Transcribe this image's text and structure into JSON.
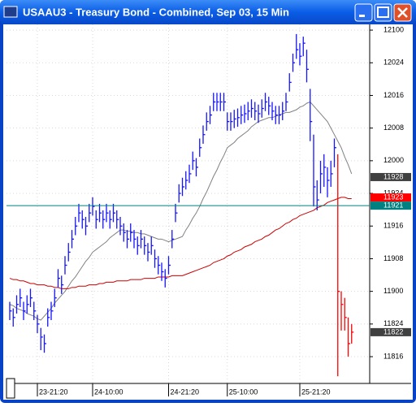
{
  "chart_data": {
    "type": "ohlc",
    "title": "USAAU3 - Treasury Bond - Combined, Sep 03, 15 Min",
    "categories": [
      null,
      null,
      null,
      null,
      null,
      null,
      null,
      null,
      "23-21:20",
      null,
      null,
      null,
      null,
      null,
      null,
      null,
      null,
      null,
      null,
      null,
      null,
      null,
      null,
      null,
      "24-10:00",
      null,
      null,
      null,
      null,
      null,
      null,
      null,
      null,
      null,
      null,
      null,
      null,
      null,
      null,
      null,
      null,
      null,
      null,
      null,
      null,
      null,
      "24-21:20",
      null,
      null,
      null,
      null,
      null,
      null,
      null,
      null,
      null,
      null,
      null,
      null,
      null,
      null,
      null,
      null,
      "25-10:00",
      null,
      null,
      null,
      null,
      null,
      null,
      null,
      null,
      null,
      null,
      null,
      null,
      null,
      null,
      null,
      null,
      null,
      null,
      null,
      null,
      "25-21:20",
      null,
      null,
      null,
      null,
      null,
      null,
      null,
      null,
      null,
      null,
      null,
      null,
      null,
      null,
      null
    ],
    "series": [
      {
        "color": "#1414ff",
        "close": [
          118.85,
          118.8,
          118.9,
          118.95,
          118.85,
          118.9,
          118.95,
          118.85,
          118.75,
          118.65,
          118.6,
          118.8,
          118.85,
          118.95,
          119.1,
          119.05,
          119.2,
          119.3,
          119.4,
          119.5,
          119.6,
          119.55,
          119.5,
          119.6,
          119.65,
          119.55,
          119.6,
          119.55,
          119.6,
          119.55,
          119.6,
          119.55,
          119.5,
          119.45,
          119.4,
          119.45,
          119.4,
          119.35,
          119.4,
          119.35,
          119.3,
          119.35,
          119.25,
          119.2,
          119.15,
          119.1,
          119.2,
          119.4,
          119.6,
          119.75,
          119.8,
          119.85,
          119.9,
          120.0,
          119.95,
          120.1,
          120.2,
          120.3,
          120.35,
          120.45,
          120.45,
          120.45,
          120.45,
          120.3,
          120.3,
          120.32,
          120.33,
          120.35,
          120.36,
          120.38,
          120.4,
          120.38,
          120.36,
          120.4,
          120.45,
          120.42,
          120.38,
          120.35,
          120.35,
          120.38,
          120.45,
          120.6,
          120.75,
          120.85,
          120.8,
          120.9,
          120.7,
          120.3,
          119.8,
          119.7,
          119.9,
          119.95,
          119.85,
          119.9,
          120.1,
          null,
          null,
          null,
          null,
          null
        ],
        "high": [
          118.92,
          118.87,
          118.97,
          119.02,
          118.92,
          118.97,
          119.02,
          118.92,
          118.82,
          118.72,
          118.67,
          118.87,
          118.92,
          119.02,
          119.17,
          119.12,
          119.27,
          119.37,
          119.47,
          119.57,
          119.67,
          119.62,
          119.57,
          119.67,
          119.72,
          119.62,
          119.67,
          119.62,
          119.67,
          119.62,
          119.67,
          119.62,
          119.57,
          119.52,
          119.47,
          119.52,
          119.47,
          119.42,
          119.47,
          119.42,
          119.37,
          119.42,
          119.32,
          119.27,
          119.22,
          119.17,
          119.27,
          119.47,
          119.67,
          119.82,
          119.87,
          119.92,
          119.97,
          120.07,
          120.02,
          120.17,
          120.27,
          120.37,
          120.42,
          120.52,
          120.52,
          120.52,
          120.52,
          120.37,
          120.37,
          120.39,
          120.4,
          120.42,
          120.43,
          120.45,
          120.47,
          120.45,
          120.43,
          120.47,
          120.52,
          120.49,
          120.45,
          120.42,
          120.42,
          120.45,
          120.52,
          120.67,
          120.82,
          120.97,
          120.9,
          120.95,
          120.85,
          120.55,
          120.2,
          119.85,
          120.0,
          120.05,
          119.95,
          120.0,
          120.17,
          null,
          null,
          null,
          null,
          null
        ],
        "low": [
          118.78,
          118.73,
          118.83,
          118.88,
          118.78,
          118.83,
          118.88,
          118.78,
          118.68,
          118.55,
          118.53,
          118.73,
          118.78,
          118.88,
          119.03,
          118.98,
          119.13,
          119.23,
          119.33,
          119.43,
          119.53,
          119.48,
          119.43,
          119.53,
          119.58,
          119.48,
          119.53,
          119.48,
          119.53,
          119.48,
          119.53,
          119.48,
          119.43,
          119.38,
          119.33,
          119.38,
          119.33,
          119.28,
          119.33,
          119.28,
          119.23,
          119.28,
          119.18,
          119.13,
          119.08,
          119.03,
          119.13,
          119.33,
          119.53,
          119.68,
          119.73,
          119.78,
          119.83,
          119.93,
          119.88,
          120.03,
          120.13,
          120.23,
          120.28,
          120.38,
          120.38,
          120.38,
          120.38,
          120.23,
          120.23,
          120.25,
          120.26,
          120.28,
          120.29,
          120.31,
          120.33,
          120.31,
          120.29,
          120.33,
          120.38,
          120.35,
          120.31,
          120.28,
          120.28,
          120.31,
          120.38,
          120.53,
          120.68,
          120.78,
          120.73,
          120.8,
          120.6,
          120.15,
          119.65,
          119.62,
          119.75,
          119.8,
          119.72,
          119.8,
          119.95,
          null,
          null,
          null,
          null,
          null
        ]
      },
      {
        "color": "#ff0000",
        "close": [
          null,
          null,
          null,
          null,
          null,
          null,
          null,
          null,
          null,
          null,
          null,
          null,
          null,
          null,
          null,
          null,
          null,
          null,
          null,
          null,
          null,
          null,
          null,
          null,
          null,
          null,
          null,
          null,
          null,
          null,
          null,
          null,
          null,
          null,
          null,
          null,
          null,
          null,
          null,
          null,
          null,
          null,
          null,
          null,
          null,
          null,
          null,
          null,
          null,
          null,
          null,
          null,
          null,
          null,
          null,
          null,
          null,
          null,
          null,
          null,
          null,
          null,
          null,
          null,
          null,
          null,
          null,
          null,
          null,
          null,
          null,
          null,
          null,
          null,
          null,
          null,
          null,
          null,
          null,
          null,
          null,
          null,
          null,
          null,
          null,
          null,
          null,
          null,
          null,
          null,
          null,
          null,
          null,
          null,
          null,
          119.0,
          118.9,
          118.8,
          118.6,
          118.6875
        ],
        "high": [
          null,
          null,
          null,
          null,
          null,
          null,
          null,
          null,
          null,
          null,
          null,
          null,
          null,
          null,
          null,
          null,
          null,
          null,
          null,
          null,
          null,
          null,
          null,
          null,
          null,
          null,
          null,
          null,
          null,
          null,
          null,
          null,
          null,
          null,
          null,
          null,
          null,
          null,
          null,
          null,
          null,
          null,
          null,
          null,
          null,
          null,
          null,
          null,
          null,
          null,
          null,
          null,
          null,
          null,
          null,
          null,
          null,
          null,
          null,
          null,
          null,
          null,
          null,
          null,
          null,
          null,
          null,
          null,
          null,
          null,
          null,
          null,
          null,
          null,
          null,
          null,
          null,
          null,
          null,
          null,
          null,
          null,
          null,
          null,
          null,
          null,
          null,
          null,
          null,
          null,
          null,
          null,
          null,
          null,
          null,
          120.05,
          119.0,
          118.95,
          118.8,
          118.75
        ],
        "low": [
          null,
          null,
          null,
          null,
          null,
          null,
          null,
          null,
          null,
          null,
          null,
          null,
          null,
          null,
          null,
          null,
          null,
          null,
          null,
          null,
          null,
          null,
          null,
          null,
          null,
          null,
          null,
          null,
          null,
          null,
          null,
          null,
          null,
          null,
          null,
          null,
          null,
          null,
          null,
          null,
          null,
          null,
          null,
          null,
          null,
          null,
          null,
          null,
          null,
          null,
          null,
          null,
          null,
          null,
          null,
          null,
          null,
          null,
          null,
          null,
          null,
          null,
          null,
          null,
          null,
          null,
          null,
          null,
          null,
          null,
          null,
          null,
          null,
          null,
          null,
          null,
          null,
          null,
          null,
          null,
          null,
          null,
          null,
          null,
          null,
          null,
          null,
          null,
          null,
          null,
          null,
          null,
          null,
          null,
          null,
          118.35,
          118.7,
          118.7,
          118.5,
          118.6
        ]
      }
    ],
    "lines": [
      {
        "color": "#808080",
        "values": [
          118.9,
          118.89,
          118.87,
          118.86,
          118.85,
          118.83,
          118.82,
          118.81,
          118.79,
          118.78,
          118.81,
          118.84,
          118.87,
          118.91,
          118.94,
          118.97,
          119.0,
          119.04,
          119.08,
          119.11,
          119.15,
          119.19,
          119.23,
          119.26,
          119.3,
          119.32,
          119.34,
          119.36,
          119.38,
          119.41,
          119.43,
          119.45,
          119.47,
          119.47,
          119.46,
          119.46,
          119.45,
          119.45,
          119.44,
          119.44,
          119.43,
          119.42,
          119.41,
          119.4,
          119.4,
          119.39,
          119.38,
          119.39,
          119.4,
          119.41,
          119.42,
          119.47,
          119.51,
          119.56,
          119.6,
          119.65,
          119.71,
          119.76,
          119.82,
          119.88,
          119.93,
          119.99,
          120.04,
          120.1,
          120.12,
          120.14,
          120.17,
          120.19,
          120.21,
          120.23,
          120.26,
          120.28,
          120.3,
          120.31,
          120.32,
          120.33,
          120.33,
          120.34,
          120.35,
          120.36,
          120.37,
          120.37,
          120.38,
          120.39,
          120.41,
          120.42,
          120.44,
          120.45,
          120.42,
          120.39,
          120.36,
          120.33,
          120.3,
          120.25,
          120.2,
          120.15,
          120.1,
          120.03,
          119.97,
          119.9
        ]
      },
      {
        "color": "#cc0000",
        "values": [
          119.1,
          119.09,
          119.09,
          119.08,
          119.08,
          119.07,
          119.06,
          119.06,
          119.05,
          119.05,
          119.05,
          119.04,
          119.04,
          119.03,
          119.03,
          119.02,
          119.02,
          119.02,
          119.03,
          119.03,
          119.04,
          119.04,
          119.04,
          119.05,
          119.05,
          119.05,
          119.06,
          119.06,
          119.07,
          119.07,
          119.07,
          119.08,
          119.08,
          119.08,
          119.08,
          119.09,
          119.09,
          119.09,
          119.09,
          119.1,
          119.1,
          119.1,
          119.1,
          119.11,
          119.11,
          119.11,
          119.11,
          119.12,
          119.12,
          119.12,
          119.12,
          119.13,
          119.14,
          119.15,
          119.16,
          119.17,
          119.18,
          119.19,
          119.2,
          119.22,
          119.23,
          119.24,
          119.25,
          119.27,
          119.28,
          119.3,
          119.31,
          119.32,
          119.34,
          119.35,
          119.36,
          119.38,
          119.39,
          119.4,
          119.42,
          119.43,
          119.45,
          119.47,
          119.48,
          119.5,
          119.52,
          119.53,
          119.55,
          119.56,
          119.58,
          119.59,
          119.6,
          119.61,
          119.62,
          119.64,
          119.65,
          119.66,
          119.68,
          119.69,
          119.7,
          119.71,
          119.72,
          119.72,
          119.71,
          119.71
        ]
      }
    ],
    "markers": [
      {
        "value": 119.875,
        "label": "11928",
        "color": "#404040"
      },
      {
        "value": 119.71875,
        "label": "11923",
        "color": "#ff0000"
      },
      {
        "value": 119.65625,
        "label": "11921",
        "color": "#008080",
        "line": true
      },
      {
        "value": 118.6875,
        "label": "11822",
        "color": "#404040"
      }
    ],
    "ylim": [
      118.295,
      121.044
    ],
    "yticks": [
      {
        "value": 121,
        "label": "12100"
      },
      {
        "value": 120.75,
        "label": "12024"
      },
      {
        "value": 120.5,
        "label": "12016"
      },
      {
        "value": 120.25,
        "label": "12008"
      },
      {
        "value": 120,
        "label": "12000"
      },
      {
        "value": 119.75,
        "label": "11924"
      },
      {
        "value": 119.5,
        "label": "11916"
      },
      {
        "value": 119.25,
        "label": "11908"
      },
      {
        "value": 119,
        "label": "11900"
      },
      {
        "value": 118.75,
        "label": "11824"
      },
      {
        "value": 118.5,
        "label": "11816"
      }
    ],
    "grid": true
  }
}
